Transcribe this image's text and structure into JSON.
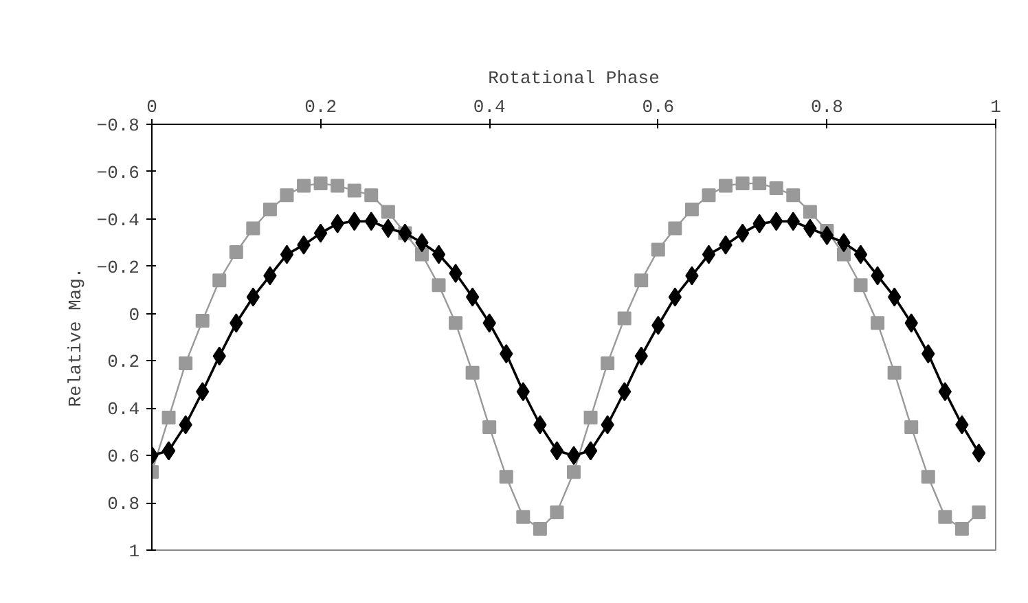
{
  "chart_data": {
    "type": "line",
    "xlabel": "Rotational Phase",
    "ylabel": "Relative Mag.",
    "xlim": [
      0,
      1
    ],
    "xticks": [
      0,
      0.2,
      0.4,
      0.6,
      0.8,
      1
    ],
    "ylim": [
      1,
      -0.8
    ],
    "yticks": [
      -0.8,
      -0.6,
      -0.4,
      -0.2,
      0,
      0.2,
      0.4,
      0.6,
      0.8,
      1
    ],
    "grid": false,
    "line_style": "solid",
    "x": [
      0,
      0.02,
      0.04,
      0.06,
      0.08,
      0.1,
      0.12,
      0.14,
      0.16,
      0.18,
      0.2,
      0.22,
      0.24,
      0.26,
      0.28,
      0.3,
      0.32,
      0.34,
      0.36,
      0.38,
      0.4,
      0.42,
      0.44,
      0.46,
      0.48,
      0.5,
      0.52,
      0.54,
      0.56,
      0.58,
      0.6,
      0.62,
      0.64,
      0.66,
      0.68,
      0.7,
      0.72,
      0.74,
      0.76,
      0.78,
      0.8,
      0.82,
      0.84,
      0.86,
      0.88,
      0.9,
      0.92,
      0.94,
      0.96,
      0.98
    ],
    "series": [
      {
        "color": "#999999",
        "marker": "square",
        "values": [
          0.67,
          0.44,
          0.21,
          0.03,
          -0.14,
          -0.26,
          -0.36,
          -0.44,
          -0.5,
          -0.54,
          -0.55,
          -0.54,
          -0.52,
          -0.5,
          -0.43,
          -0.34,
          -0.25,
          -0.12,
          0.04,
          0.25,
          0.48,
          0.69,
          0.86,
          0.91,
          0.84,
          0.67,
          0.44,
          0.21,
          0.02,
          -0.14,
          -0.27,
          -0.36,
          -0.44,
          -0.5,
          -0.54,
          -0.55,
          -0.55,
          -0.53,
          -0.5,
          -0.43,
          -0.35,
          -0.25,
          -0.12,
          0.04,
          0.25,
          0.48,
          0.69,
          0.86,
          0.91,
          0.84
        ]
      },
      {
        "color": "#000000",
        "marker": "diamond",
        "values": [
          0.6,
          0.58,
          0.47,
          0.33,
          0.18,
          0.04,
          -0.07,
          -0.16,
          -0.25,
          -0.29,
          -0.34,
          -0.38,
          -0.39,
          -0.39,
          -0.36,
          -0.34,
          -0.3,
          -0.25,
          -0.17,
          -0.07,
          0.04,
          0.17,
          0.33,
          0.47,
          0.58,
          0.6,
          0.58,
          0.47,
          0.33,
          0.18,
          0.05,
          -0.07,
          -0.16,
          -0.25,
          -0.29,
          -0.34,
          -0.38,
          -0.39,
          -0.39,
          -0.36,
          -0.33,
          -0.3,
          -0.25,
          -0.16,
          -0.07,
          0.04,
          0.17,
          0.33,
          0.47,
          0.59
        ]
      }
    ]
  }
}
